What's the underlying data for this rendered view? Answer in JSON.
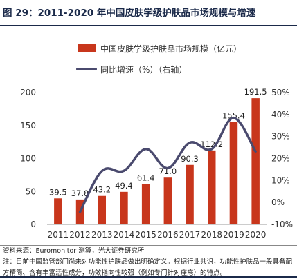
{
  "figure": {
    "title": "图 29：2011-2020 年中国皮肤学级护肤品市场规模与增速",
    "source": "资料来源：Euromonitor 测算，光大证券研究所",
    "note": "注：目前中国监管部门尚未对功能性护肤品做出明确定义。根据行业共识，功能性护肤品一般具备配方精简、含有丰富活性成分，功效指向性较强（例如专门针对痤疮）的特点。"
  },
  "chart_data": {
    "type": "bar",
    "categories": [
      "2011",
      "2012",
      "2013",
      "2014",
      "2015",
      "2016",
      "2017",
      "2018",
      "2019",
      "2020"
    ],
    "series": [
      {
        "name": "中国皮肤学级护肤品市场规模（亿元）",
        "type": "bar",
        "axis": "left",
        "color": "#c8361c",
        "values": [
          39.5,
          37.8,
          43.2,
          49.4,
          61.4,
          71.0,
          90.3,
          112.2,
          155.4,
          191.5
        ],
        "labels": [
          "39.5",
          "37.8",
          "43.2",
          "49.4",
          "61.4",
          "71.0",
          "90.3",
          "112.2",
          "155.4",
          "191.5"
        ]
      },
      {
        "name": "同比增速（%）（右轴）",
        "type": "line",
        "axis": "right",
        "color": "#4a4a6e",
        "values": [
          null,
          -4.3,
          14.3,
          14.4,
          24.3,
          15.6,
          27.2,
          24.3,
          38.5,
          23.2
        ]
      }
    ],
    "y_left": {
      "range": [
        0,
        200
      ],
      "ticks": [
        "0",
        "50",
        "100",
        "150",
        "200"
      ]
    },
    "y_right": {
      "range": [
        -10,
        50
      ],
      "ticks": [
        "-10%",
        "0%",
        "10%",
        "20%",
        "30%",
        "40%",
        "50%"
      ]
    },
    "legend_position": "top-center",
    "grid": false
  }
}
